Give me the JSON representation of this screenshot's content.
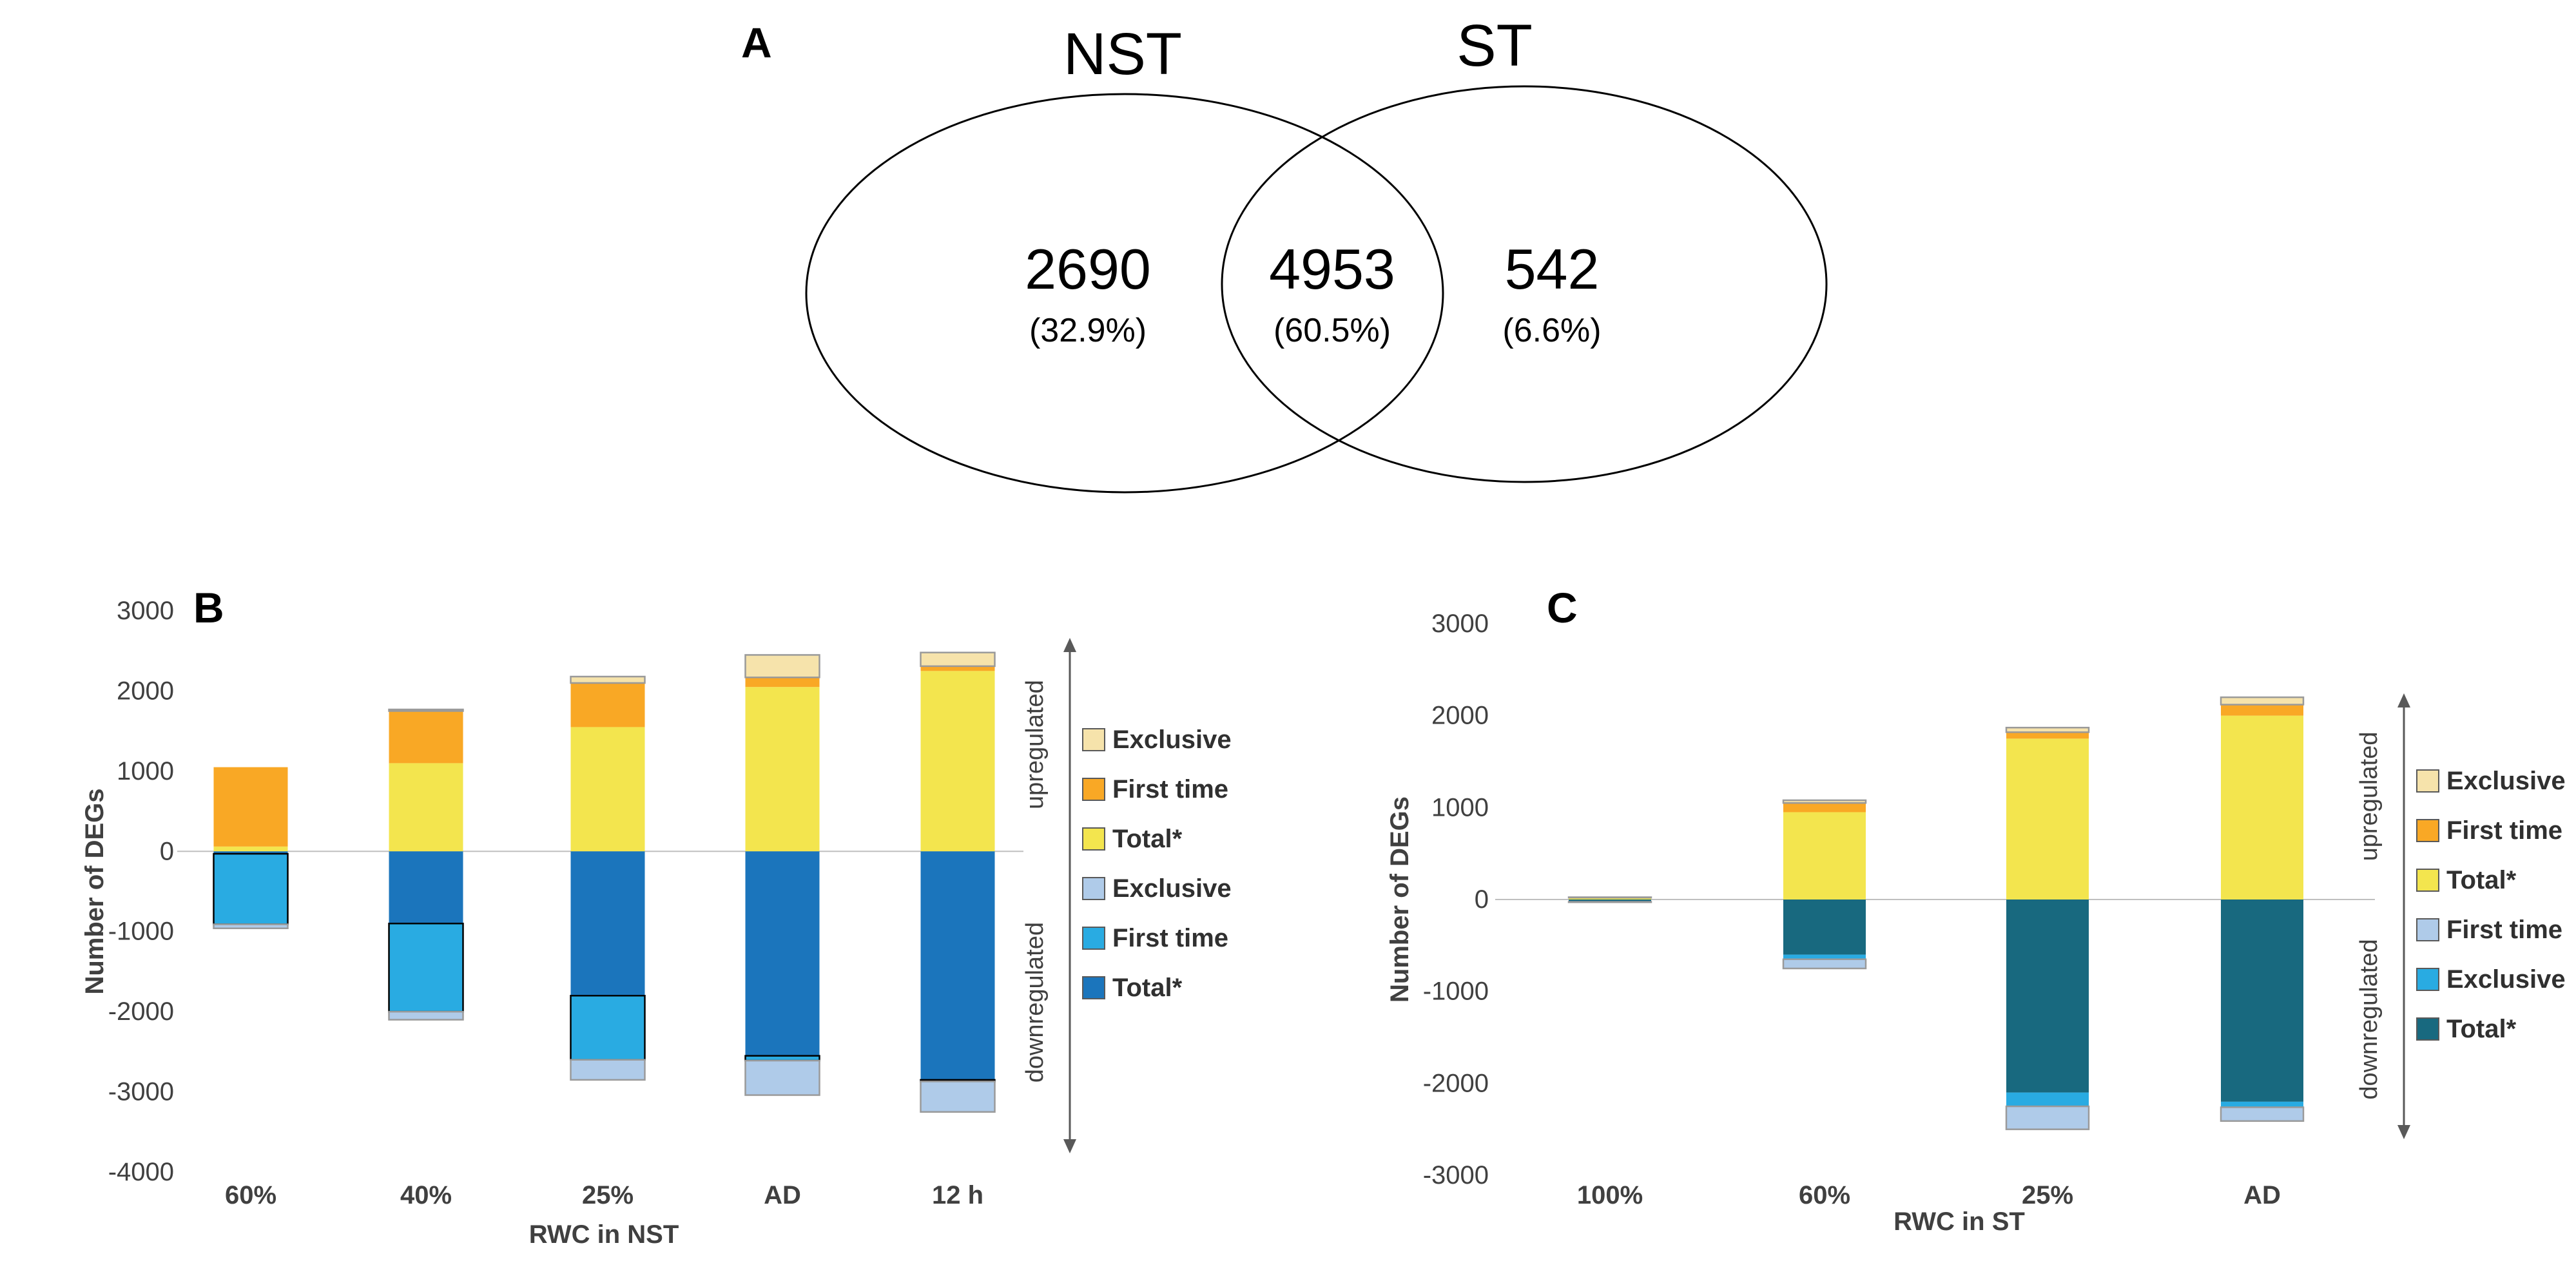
{
  "figure": {
    "panel_a_label": "A",
    "panel_b_label": "B",
    "panel_c_label": "C",
    "background_color": "#ffffff"
  },
  "venn": {
    "left_label": "NST",
    "right_label": "ST",
    "regions": {
      "left_value": "2690",
      "left_pct": "(32.9%)",
      "overlap_value": "4953",
      "overlap_pct": "(60.5%)",
      "right_value": "542",
      "right_pct": "(6.6%)"
    }
  },
  "chart_data": [
    {
      "id": "B",
      "type": "bar",
      "stacked": true,
      "diverging": true,
      "grid": false,
      "legend_position": "right",
      "ylabel": "Number of DEGs",
      "xlabel": "RWC in NST",
      "ylim": [
        -4000,
        3000
      ],
      "ytick_step": 1000,
      "categories": [
        "60%",
        "40%",
        "25%",
        "AD",
        "12 h"
      ],
      "up_label": "upregulated",
      "down_label": "downregulated",
      "up_series": [
        {
          "name": "Total*",
          "color": "#F3E54E",
          "values": [
            60,
            1100,
            1550,
            2050,
            2250
          ]
        },
        {
          "name": "First time",
          "color": "#F9A825",
          "values": [
            990,
            650,
            550,
            120,
            60
          ]
        },
        {
          "name": "Exclusive",
          "color": "#F6E3AB",
          "stroke": "#9a9a9a",
          "values": [
            0,
            20,
            80,
            280,
            170
          ]
        }
      ],
      "down_series": [
        {
          "name": "Total*",
          "color": "#1B75BC",
          "values": [
            30,
            900,
            1800,
            2550,
            2850
          ]
        },
        {
          "name": "First time",
          "color": "#29ABE2",
          "stroke": "#000000",
          "values": [
            880,
            1100,
            800,
            60,
            20
          ]
        },
        {
          "name": "Exclusive",
          "color": "#AFCBE9",
          "stroke": "#9a9a9a",
          "values": [
            50,
            100,
            250,
            430,
            380
          ]
        }
      ],
      "legend_up": [
        "Exclusive",
        "First time",
        "Total*"
      ],
      "legend_down": [
        "Exclusive",
        "First time",
        "Total*"
      ]
    },
    {
      "id": "C",
      "type": "bar",
      "stacked": true,
      "diverging": true,
      "grid": false,
      "legend_position": "right",
      "ylabel": "Number of DEGs",
      "xlabel": "RWC in ST",
      "ylim": [
        -3000,
        3000
      ],
      "ytick_step": 1000,
      "categories": [
        "100%",
        "60%",
        "25%",
        "AD"
      ],
      "up_label": "upregulated",
      "down_label": "downregulated",
      "up_series": [
        {
          "name": "Total*",
          "color": "#F3E54E",
          "values": [
            15,
            950,
            1750,
            2000
          ]
        },
        {
          "name": "First time",
          "color": "#F9A825",
          "values": [
            5,
            100,
            70,
            120
          ]
        },
        {
          "name": "Exclusive",
          "color": "#F6E3AB",
          "stroke": "#9a9a9a",
          "values": [
            5,
            30,
            50,
            80
          ]
        }
      ],
      "down_series": [
        {
          "name": "Total*",
          "color": "#18697F",
          "values": [
            20,
            600,
            2100,
            2200
          ]
        },
        {
          "name": "Exclusive",
          "color": "#29ABE2",
          "values": [
            5,
            50,
            150,
            60
          ]
        },
        {
          "name": "First time",
          "color": "#AFCBE9",
          "stroke": "#9a9a9a",
          "values": [
            5,
            100,
            250,
            150
          ]
        }
      ],
      "legend_up": [
        "Exclusive",
        "First time",
        "Total*"
      ],
      "legend_down": [
        "First time",
        "Exclusive",
        "Total*"
      ]
    }
  ]
}
